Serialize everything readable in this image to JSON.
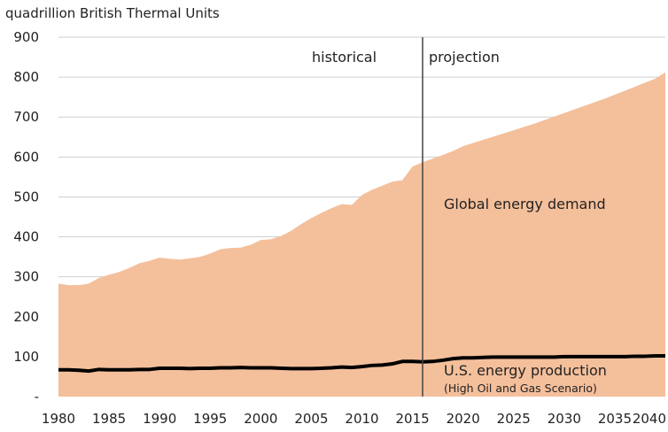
{
  "chart_data": {
    "type": "area",
    "title": "",
    "ylabel": "quadrillion British Thermal Units",
    "xlabel": "",
    "xlim": [
      1980,
      2040
    ],
    "ylim": [
      0,
      900
    ],
    "grid": true,
    "x_ticks": [
      1980,
      1985,
      1990,
      1995,
      2000,
      2005,
      2010,
      2015,
      2020,
      2025,
      2030,
      2035,
      2040
    ],
    "x_tick_labels": [
      "1980",
      "1985",
      "1990",
      "1995",
      "2000",
      "2005",
      "2010",
      "2015",
      "2020",
      "2025",
      "2030",
      "2035",
      "2040"
    ],
    "y_ticks": [
      0,
      100,
      200,
      300,
      400,
      500,
      600,
      700,
      800,
      900
    ],
    "y_tick_labels": [
      "-",
      "100",
      "200",
      "300",
      "400",
      "500",
      "600",
      "700",
      "800",
      "900"
    ],
    "divider_year": 2016,
    "annotations": {
      "historical": "historical",
      "projection": "projection"
    },
    "colors": {
      "area": "#f4bf9b",
      "line": "#000000",
      "divider": "#444444",
      "grid": "#cfcfcf"
    },
    "series": [
      {
        "name": "Global energy demand",
        "style": "area",
        "x": [
          1980,
          1981,
          1982,
          1983,
          1984,
          1985,
          1986,
          1987,
          1988,
          1989,
          1990,
          1991,
          1992,
          1993,
          1994,
          1995,
          1996,
          1997,
          1998,
          1999,
          2000,
          2001,
          2002,
          2003,
          2004,
          2005,
          2006,
          2007,
          2008,
          2009,
          2010,
          2011,
          2012,
          2013,
          2014,
          2015,
          2016,
          2017,
          2018,
          2019,
          2020,
          2021,
          2022,
          2023,
          2024,
          2025,
          2026,
          2027,
          2028,
          2029,
          2030,
          2031,
          2032,
          2033,
          2034,
          2035,
          2036,
          2037,
          2038,
          2039,
          2040
        ],
        "values": [
          283,
          279,
          279,
          283,
          297,
          305,
          312,
          322,
          334,
          340,
          348,
          345,
          343,
          346,
          350,
          358,
          369,
          372,
          373,
          380,
          392,
          394,
          402,
          415,
          432,
          447,
          460,
          472,
          482,
          480,
          505,
          518,
          528,
          538,
          542,
          576,
          587,
          596,
          605,
          615,
          627,
          635,
          643,
          651,
          659,
          667,
          675,
          683,
          692,
          701,
          710,
          719,
          728,
          737,
          746,
          756,
          766,
          776,
          786,
          796,
          812
        ]
      },
      {
        "name": "U.S. energy production",
        "subtitle": "(High Oil and Gas Scenario)",
        "style": "line",
        "x": [
          1980,
          1981,
          1982,
          1983,
          1984,
          1985,
          1986,
          1987,
          1988,
          1989,
          1990,
          1991,
          1992,
          1993,
          1994,
          1995,
          1996,
          1997,
          1998,
          1999,
          2000,
          2001,
          2002,
          2003,
          2004,
          2005,
          2006,
          2007,
          2008,
          2009,
          2010,
          2011,
          2012,
          2013,
          2014,
          2015,
          2016,
          2017,
          2018,
          2019,
          2020,
          2021,
          2022,
          2023,
          2024,
          2025,
          2026,
          2027,
          2028,
          2029,
          2030,
          2031,
          2032,
          2033,
          2034,
          2035,
          2036,
          2037,
          2038,
          2039,
          2040
        ],
        "values": [
          67,
          67,
          66,
          64,
          68,
          67,
          67,
          67,
          68,
          68,
          71,
          71,
          71,
          70,
          71,
          71,
          72,
          72,
          73,
          72,
          72,
          72,
          71,
          70,
          70,
          70,
          71,
          72,
          74,
          73,
          75,
          78,
          79,
          82,
          88,
          88,
          87,
          88,
          91,
          95,
          97,
          97,
          98,
          99,
          99,
          99,
          99,
          99,
          99,
          99,
          100,
          100,
          100,
          100,
          100,
          100,
          100,
          101,
          101,
          102,
          102
        ]
      }
    ]
  }
}
